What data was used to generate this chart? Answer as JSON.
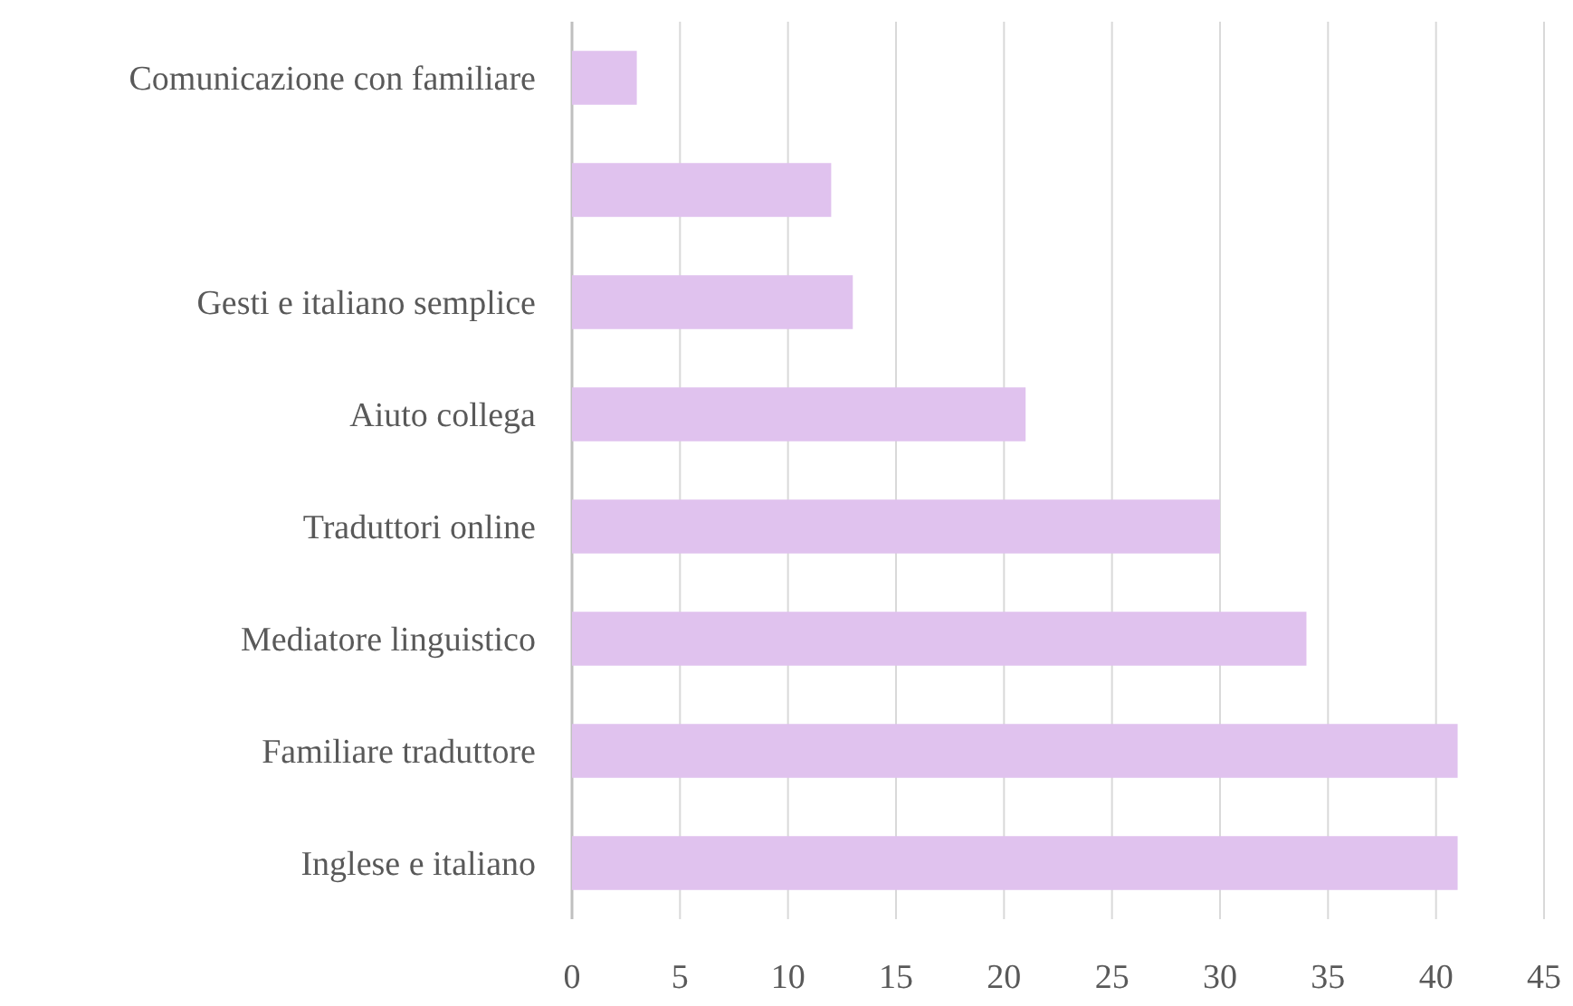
{
  "chart_data": {
    "type": "bar",
    "orientation": "horizontal",
    "categories": [
      "Comunicazione con familiare",
      null,
      "Gesti e italiano semplice",
      "Aiuto collega",
      "Traduttori online",
      "Mediatore linguistico",
      "Familiare traduttore",
      "Inglese e italiano"
    ],
    "values": [
      3,
      12,
      13,
      21,
      30,
      34,
      41,
      41
    ],
    "color": "#e0c2ee",
    "xlim": [
      0,
      45
    ],
    "xticks": [
      0,
      5,
      10,
      15,
      20,
      25,
      30,
      35,
      40,
      45
    ],
    "grid": "x"
  }
}
